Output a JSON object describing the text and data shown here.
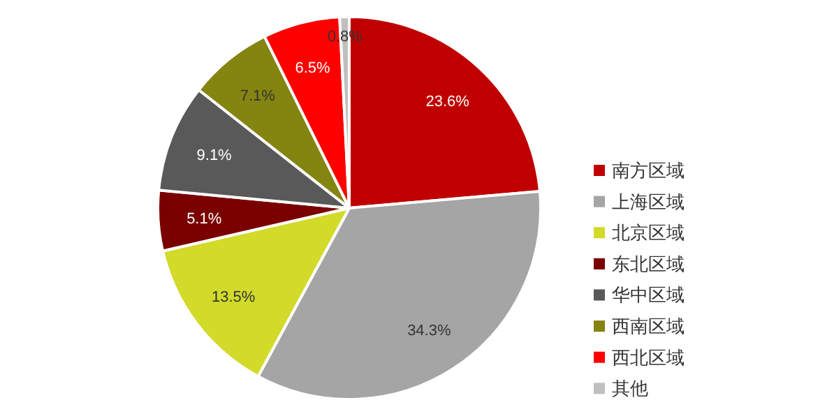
{
  "chart_data": {
    "type": "pie",
    "categories": [
      "南方区域",
      "上海区域",
      "北京区域",
      "东北区域",
      "华中区域",
      "西南区域",
      "西北区域",
      "其他"
    ],
    "values": [
      23.6,
      34.3,
      13.5,
      5.1,
      9.1,
      7.1,
      6.5,
      0.8
    ],
    "value_labels": [
      "23.6%",
      "34.3%",
      "13.5%",
      "5.1%",
      "9.1%",
      "7.1%",
      "6.5%",
      "0.8%"
    ],
    "colors": [
      "#c00000",
      "#a5a5a5",
      "#d2da2a",
      "#7a0000",
      "#595959",
      "#848410",
      "#ff0000",
      "#bfbfbf"
    ],
    "legend": "right"
  }
}
